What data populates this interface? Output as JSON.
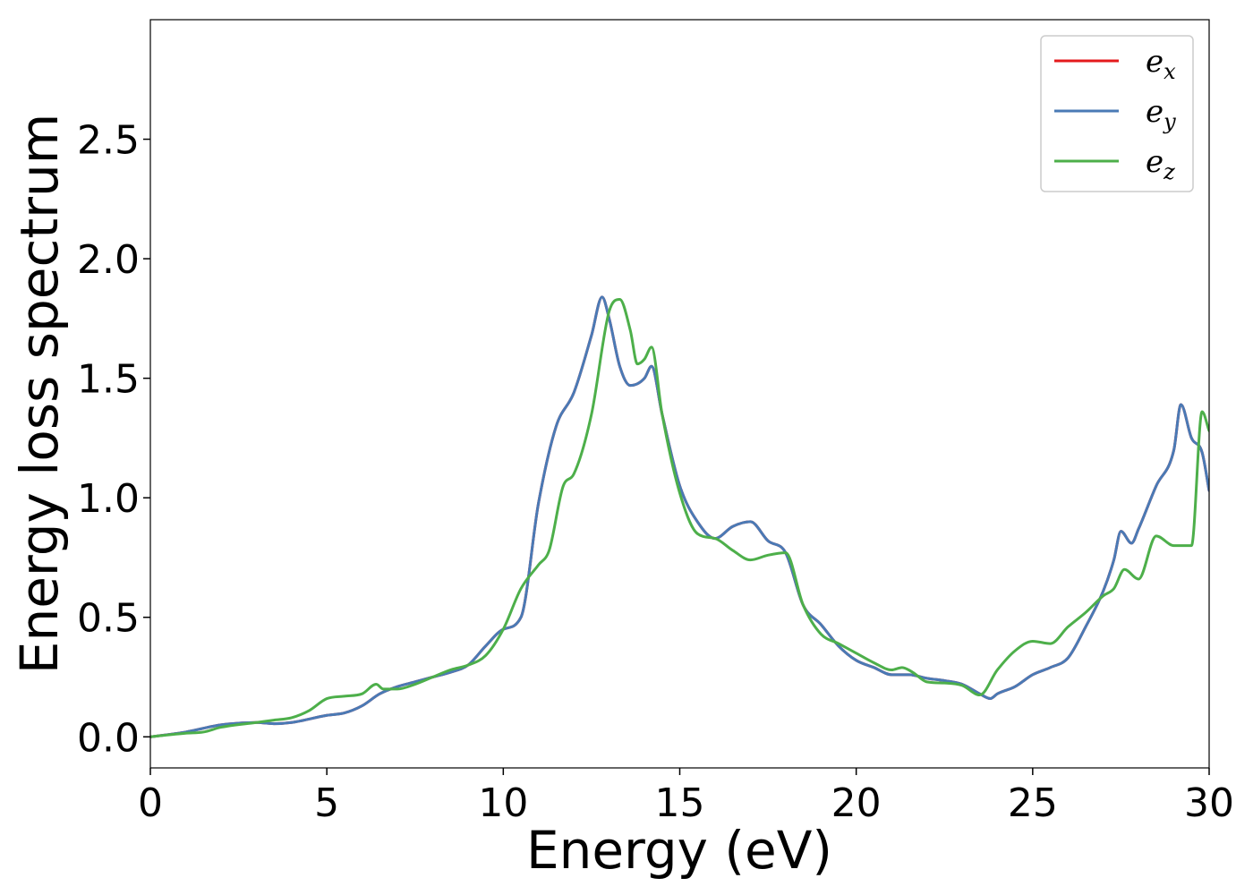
{
  "chart_data": {
    "type": "line",
    "title": "",
    "xlabel": "Energy (eV)",
    "ylabel": "Energy loss spectrum",
    "xlim": [
      0,
      30
    ],
    "ylim": [
      -0.13,
      3.0
    ],
    "xticks": [
      "0",
      "5",
      "10",
      "15",
      "20",
      "25",
      "30"
    ],
    "yticks": [
      "0.0",
      "0.5",
      "1.0",
      "1.5",
      "2.0",
      "2.5"
    ],
    "grid": false,
    "legend_position": "top-right",
    "series": [
      {
        "name": "e",
        "subscript": "x",
        "color": "#e41a1c",
        "x": [
          0,
          1,
          2,
          3,
          3.5,
          4,
          5,
          5.5,
          6,
          6.5,
          7,
          7.5,
          8,
          8.5,
          9,
          9.5,
          10,
          10.5,
          11,
          11.5,
          12,
          12.5,
          12.8,
          13,
          13.3,
          13.6,
          14,
          14.2,
          14.5,
          15,
          15.5,
          16,
          16.5,
          17,
          17.5,
          18,
          18.5,
          19,
          19.5,
          20,
          20.5,
          21,
          21.5,
          22,
          22.5,
          23,
          23.5,
          23.8,
          24,
          24.5,
          25,
          25.5,
          26,
          26.5,
          27,
          27.3,
          27.5,
          27.8,
          28,
          28.5,
          29,
          29.2,
          29.5,
          29.8,
          30
        ],
        "y": [
          0,
          0.02,
          0.05,
          0.06,
          0.055,
          0.06,
          0.09,
          0.1,
          0.13,
          0.18,
          0.21,
          0.23,
          0.25,
          0.27,
          0.3,
          0.38,
          0.45,
          0.5,
          0.98,
          1.3,
          1.44,
          1.68,
          1.84,
          1.75,
          1.55,
          1.47,
          1.5,
          1.55,
          1.35,
          1.05,
          0.9,
          0.83,
          0.88,
          0.9,
          0.82,
          0.77,
          0.55,
          0.47,
          0.38,
          0.32,
          0.29,
          0.26,
          0.26,
          0.245,
          0.235,
          0.22,
          0.18,
          0.16,
          0.18,
          0.21,
          0.26,
          0.29,
          0.33,
          0.46,
          0.61,
          0.74,
          0.86,
          0.81,
          0.87,
          1.05,
          1.2,
          1.39,
          1.25,
          1.19,
          1.03
        ]
      },
      {
        "name": "e",
        "subscript": "y",
        "color": "#4a7ab5",
        "x": [
          0,
          1,
          2,
          3,
          3.5,
          4,
          5,
          5.5,
          6,
          6.5,
          7,
          7.5,
          8,
          8.5,
          9,
          9.5,
          10,
          10.5,
          11,
          11.5,
          12,
          12.5,
          12.8,
          13,
          13.3,
          13.6,
          14,
          14.2,
          14.5,
          15,
          15.5,
          16,
          16.5,
          17,
          17.5,
          18,
          18.5,
          19,
          19.5,
          20,
          20.5,
          21,
          21.5,
          22,
          22.5,
          23,
          23.5,
          23.8,
          24,
          24.5,
          25,
          25.5,
          26,
          26.5,
          27,
          27.3,
          27.5,
          27.8,
          28,
          28.5,
          29,
          29.2,
          29.5,
          29.8,
          30
        ],
        "y": [
          0,
          0.02,
          0.05,
          0.06,
          0.055,
          0.06,
          0.09,
          0.1,
          0.13,
          0.18,
          0.21,
          0.23,
          0.25,
          0.27,
          0.3,
          0.38,
          0.45,
          0.5,
          0.98,
          1.3,
          1.44,
          1.68,
          1.84,
          1.75,
          1.55,
          1.47,
          1.5,
          1.55,
          1.35,
          1.05,
          0.9,
          0.83,
          0.88,
          0.9,
          0.82,
          0.77,
          0.55,
          0.47,
          0.38,
          0.32,
          0.29,
          0.26,
          0.26,
          0.245,
          0.235,
          0.22,
          0.18,
          0.16,
          0.18,
          0.21,
          0.26,
          0.29,
          0.33,
          0.46,
          0.61,
          0.74,
          0.86,
          0.81,
          0.87,
          1.05,
          1.2,
          1.39,
          1.25,
          1.19,
          1.03
        ]
      },
      {
        "name": "e",
        "subscript": "z",
        "color": "#4daf4a",
        "x": [
          0,
          1,
          1.5,
          2,
          3,
          3.5,
          4,
          4.5,
          5,
          5.5,
          6,
          6.4,
          6.6,
          7,
          7.5,
          8,
          8.5,
          9,
          9.5,
          10,
          10.5,
          11,
          11.3,
          11.7,
          12,
          12.5,
          13,
          13.3,
          13.6,
          13.8,
          14,
          14.2,
          14.5,
          15,
          15.5,
          16,
          16.5,
          17,
          17.5,
          18,
          18.5,
          19,
          19.5,
          20,
          20.5,
          21,
          21.3,
          21.6,
          22,
          22.5,
          23,
          23.5,
          24,
          24.5,
          25,
          25.5,
          26,
          26.5,
          27,
          27.3,
          27.6,
          28,
          28.5,
          29,
          29.5,
          29.8,
          30
        ],
        "y": [
          0,
          0.015,
          0.02,
          0.04,
          0.06,
          0.07,
          0.08,
          0.11,
          0.16,
          0.17,
          0.18,
          0.22,
          0.2,
          0.2,
          0.22,
          0.25,
          0.28,
          0.3,
          0.34,
          0.45,
          0.62,
          0.72,
          0.78,
          1.05,
          1.1,
          1.35,
          1.78,
          1.83,
          1.7,
          1.56,
          1.58,
          1.63,
          1.35,
          1.02,
          0.85,
          0.83,
          0.78,
          0.74,
          0.76,
          0.77,
          0.55,
          0.43,
          0.39,
          0.35,
          0.31,
          0.28,
          0.29,
          0.27,
          0.23,
          0.225,
          0.215,
          0.175,
          0.28,
          0.36,
          0.4,
          0.39,
          0.46,
          0.52,
          0.59,
          0.62,
          0.7,
          0.66,
          0.84,
          0.8,
          0.8,
          1.36,
          1.28
        ]
      }
    ]
  }
}
